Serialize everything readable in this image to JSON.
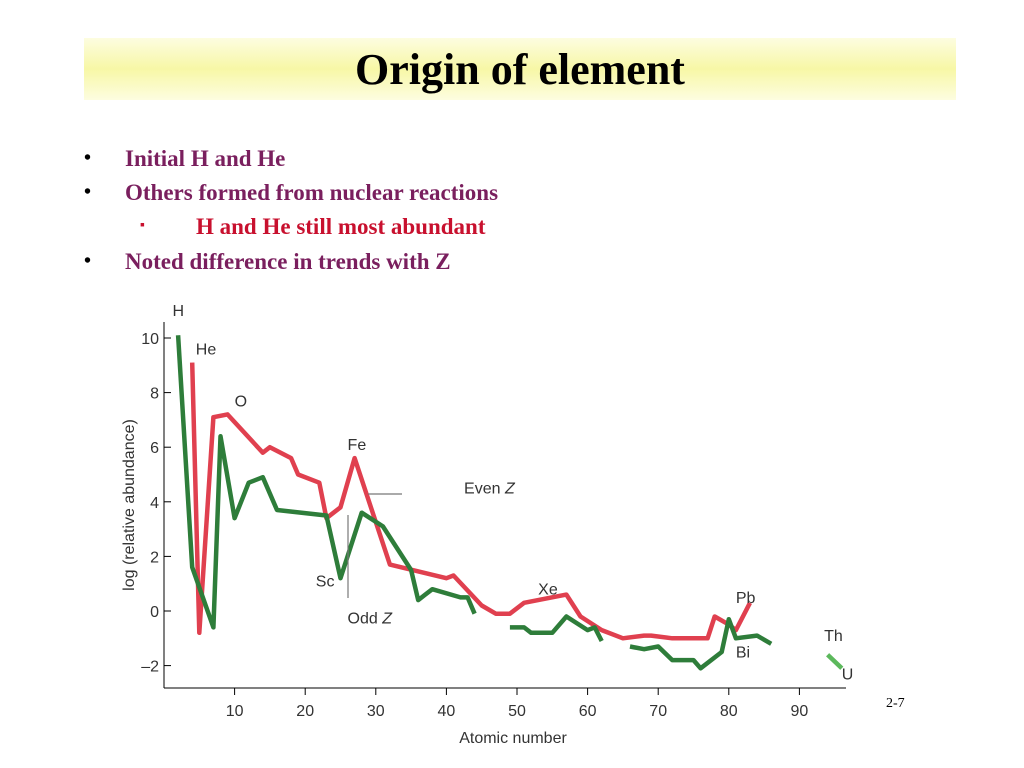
{
  "slide": {
    "title": "Origin of element",
    "slide_number": "2-7"
  },
  "bullets": [
    {
      "marker": "•",
      "text": "Initial H and He",
      "level": 1
    },
    {
      "marker": "•",
      "text": "Others formed from nuclear reactions",
      "level": 1
    },
    {
      "marker": "▪",
      "text": "H and He still most abundant",
      "level": 2
    },
    {
      "marker": "•",
      "text": "Noted difference in trends with Z",
      "level": 1
    }
  ],
  "chart_data": {
    "type": "line",
    "title": "",
    "xlabel": "Atomic number",
    "ylabel": "log (relative abundance)",
    "xlim": [
      0,
      95
    ],
    "ylim": [
      -3,
      10.6
    ],
    "x_ticks": [
      10,
      20,
      30,
      40,
      50,
      60,
      70,
      80,
      90
    ],
    "y_ticks": [
      10,
      8,
      6,
      4,
      2,
      0,
      -2
    ],
    "y_tick_labels": [
      "10",
      "8",
      "6",
      "4",
      "2",
      "0",
      "–2"
    ],
    "grid": false,
    "colors": {
      "even": "#e0404f",
      "odd": "#2e7d3a",
      "odd_light": "#5cb85c",
      "axis": "#000000",
      "label": "#333333"
    },
    "series": [
      {
        "name": "Even Z",
        "segments": [
          [
            [
              4,
              9.1
            ],
            [
              5,
              -0.8
            ],
            [
              7,
              7.1
            ],
            [
              9,
              7.2
            ],
            [
              14,
              5.8
            ],
            [
              15,
              6.0
            ],
            [
              18,
              5.6
            ],
            [
              19,
              5.0
            ],
            [
              22,
              4.7
            ],
            [
              23,
              3.4
            ],
            [
              25,
              3.8
            ],
            [
              27,
              5.6
            ],
            [
              32,
              1.7
            ],
            [
              40,
              1.2
            ],
            [
              41,
              1.3
            ],
            [
              45,
              0.2
            ],
            [
              47,
              -0.1
            ],
            [
              49,
              -0.1
            ],
            [
              51,
              0.3
            ],
            [
              53,
              0.4
            ],
            [
              57,
              0.6
            ],
            [
              59,
              -0.2
            ],
            [
              62,
              -0.7
            ],
            [
              65,
              -1.0
            ],
            [
              68,
              -0.9
            ],
            [
              69,
              -0.9
            ],
            [
              72,
              -1.0
            ],
            [
              74,
              -1.0
            ],
            [
              77,
              -1.0
            ],
            [
              78,
              -0.2
            ],
            [
              80,
              -0.5
            ],
            [
              81,
              -0.7
            ],
            [
              83,
              0.3
            ]
          ]
        ]
      },
      {
        "name": "Odd Z",
        "segments": [
          [
            [
              2,
              10.1
            ],
            [
              4,
              1.6
            ],
            [
              7,
              -0.6
            ],
            [
              8,
              6.4
            ],
            [
              10,
              3.4
            ],
            [
              12,
              4.7
            ],
            [
              14,
              4.9
            ],
            [
              16,
              3.7
            ],
            [
              23,
              3.5
            ],
            [
              25,
              1.2
            ],
            [
              28,
              3.6
            ],
            [
              31,
              3.1
            ],
            [
              35,
              1.5
            ],
            [
              36,
              0.4
            ],
            [
              37,
              0.6
            ],
            [
              38,
              0.8
            ],
            [
              42,
              0.5
            ],
            [
              43,
              0.5
            ],
            [
              44,
              -0.1
            ]
          ],
          [
            [
              49,
              -0.6
            ],
            [
              51,
              -0.6
            ],
            [
              52,
              -0.8
            ],
            [
              53,
              -0.8
            ],
            [
              55,
              -0.8
            ],
            [
              57,
              -0.2
            ],
            [
              60,
              -0.7
            ],
            [
              61,
              -0.6
            ],
            [
              62,
              -1.1
            ]
          ],
          [
            [
              66,
              -1.3
            ],
            [
              68,
              -1.4
            ],
            [
              70,
              -1.3
            ],
            [
              72,
              -1.8
            ],
            [
              75,
              -1.8
            ],
            [
              76,
              -2.1
            ],
            [
              79,
              -1.5
            ],
            [
              80,
              -0.3
            ],
            [
              81,
              -1.0
            ],
            [
              84,
              -0.9
            ],
            [
              86,
              -1.2
            ]
          ],
          [
            [
              94,
              -1.6
            ],
            [
              96,
              -2.1
            ]
          ]
        ]
      }
    ],
    "annotations": [
      {
        "text": "H",
        "x": 1.2,
        "y": 10.8
      },
      {
        "text": "He",
        "x": 4.5,
        "y": 9.4
      },
      {
        "text": "O",
        "x": 10,
        "y": 7.5
      },
      {
        "text": "Fe",
        "x": 26,
        "y": 5.9
      },
      {
        "text": "Even Z",
        "x": 42.5,
        "y": 4.3
      },
      {
        "text": "Sc",
        "x": 21.5,
        "y": 0.9
      },
      {
        "text": "Odd Z",
        "x": 26,
        "y": -0.45
      },
      {
        "text": "Xe",
        "x": 53,
        "y": 0.6
      },
      {
        "text": "Pb",
        "x": 81,
        "y": 0.3
      },
      {
        "text": "Th",
        "x": 93.5,
        "y": -1.1
      },
      {
        "text": "Bi",
        "x": 81,
        "y": -1.7
      },
      {
        "text": "U",
        "x": 96,
        "y": -2.5
      }
    ]
  }
}
